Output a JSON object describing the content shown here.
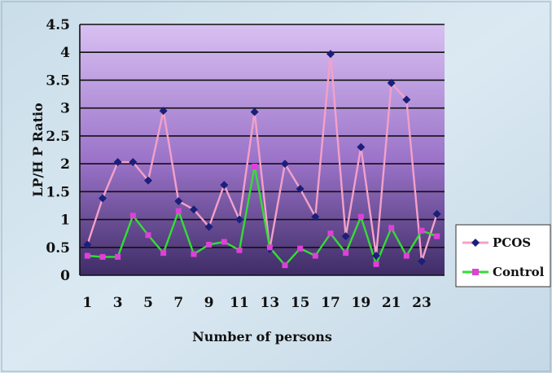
{
  "chart_data": {
    "type": "line",
    "title": "",
    "xlabel": "Number of persons",
    "ylabel": "LP/H P Ratio",
    "x": [
      1,
      2,
      3,
      4,
      5,
      6,
      7,
      8,
      9,
      10,
      11,
      12,
      13,
      14,
      15,
      16,
      17,
      18,
      19,
      20,
      21,
      22,
      23,
      24
    ],
    "x_tick_labels": [
      "1",
      "3",
      "5",
      "7",
      "9",
      "11",
      "13",
      "15",
      "17",
      "19",
      "21",
      "23"
    ],
    "y_tick_labels": [
      "0",
      "0.5",
      "1",
      "1.5",
      "2",
      "2.5",
      "3",
      "3.5",
      "4",
      "4.5"
    ],
    "ylim": [
      0,
      4.5
    ],
    "grid": "horizontal",
    "legend_position": "right",
    "series": [
      {
        "name": "PCOS",
        "line_color": "#f4a0c8",
        "marker_color": "#1b1f7a",
        "marker": "diamond",
        "values": [
          0.55,
          1.38,
          2.03,
          2.03,
          1.7,
          2.95,
          1.33,
          1.18,
          0.87,
          1.62,
          1.0,
          2.93,
          0.47,
          2.0,
          1.55,
          1.05,
          3.97,
          0.7,
          2.3,
          0.35,
          3.45,
          3.15,
          0.25,
          1.1
        ]
      },
      {
        "name": "Control",
        "line_color": "#33dd33",
        "marker_color": "#e040d8",
        "marker": "square",
        "values": [
          0.35,
          0.33,
          0.33,
          1.07,
          0.72,
          0.4,
          1.15,
          0.38,
          0.55,
          0.6,
          0.45,
          1.95,
          0.5,
          0.18,
          0.48,
          0.35,
          0.75,
          0.4,
          1.05,
          0.2,
          0.85,
          0.35,
          0.8,
          0.7
        ]
      }
    ]
  }
}
